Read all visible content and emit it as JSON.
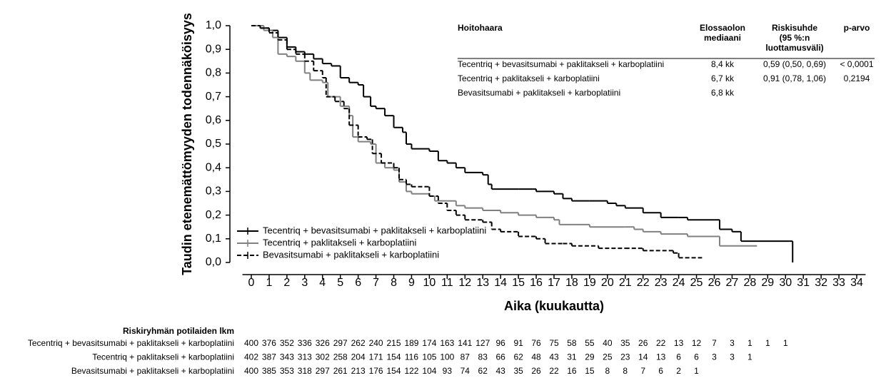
{
  "chart_data": {
    "type": "line",
    "step": true,
    "xlabel": "Aika (kuukautta)",
    "ylabel": "Taudin etenemättömyyden todennäköisyys",
    "xlim": [
      0,
      34
    ],
    "xticks": [
      0,
      1,
      2,
      3,
      4,
      5,
      6,
      7,
      8,
      9,
      10,
      11,
      12,
      13,
      14,
      15,
      16,
      17,
      18,
      19,
      20,
      21,
      22,
      23,
      24,
      25,
      26,
      27,
      28,
      29,
      30,
      31,
      32,
      33,
      34
    ],
    "ylim": [
      0,
      1
    ],
    "yticks": [
      {
        "value": 0,
        "label": "0,0"
      },
      {
        "value": 0.1,
        "label": "0,1"
      },
      {
        "value": 0.2,
        "label": "0,2"
      },
      {
        "value": 0.3,
        "label": "0,3"
      },
      {
        "value": 0.4,
        "label": "0,4"
      },
      {
        "value": 0.5,
        "label": "0,5"
      },
      {
        "value": 0.6,
        "label": "0,6"
      },
      {
        "value": 0.7,
        "label": "0,7"
      },
      {
        "value": 0.8,
        "label": "0,8"
      },
      {
        "value": 0.9,
        "label": "0,9"
      },
      {
        "value": 1,
        "label": "1,0"
      }
    ],
    "legend": "lower left",
    "series": [
      {
        "name": "Tecentriq + bevasitsumabi + paklitakseli + karboplatiini",
        "color": "#000000",
        "dashed": false,
        "x": [
          0,
          0.5,
          1,
          1.5,
          2,
          2.5,
          3,
          3.5,
          4,
          4.5,
          5,
          5.5,
          6,
          6.3,
          6.7,
          7,
          7.5,
          8,
          8.5,
          8.7,
          9,
          10,
          10.5,
          11,
          11.5,
          12,
          13,
          13.3,
          13.5,
          15,
          16,
          17,
          17.5,
          18,
          19,
          20,
          20.5,
          21,
          22,
          23,
          24,
          24.5,
          26,
          26.3,
          27,
          27.5,
          30.4
        ],
        "values": [
          1,
          0.99,
          0.98,
          0.95,
          0.91,
          0.89,
          0.88,
          0.86,
          0.84,
          0.83,
          0.78,
          0.76,
          0.75,
          0.7,
          0.66,
          0.65,
          0.62,
          0.57,
          0.55,
          0.5,
          0.48,
          0.47,
          0.43,
          0.42,
          0.4,
          0.38,
          0.37,
          0.33,
          0.31,
          0.31,
          0.3,
          0.29,
          0.27,
          0.26,
          0.26,
          0.25,
          0.24,
          0.23,
          0.21,
          0.19,
          0.19,
          0.18,
          0.18,
          0.14,
          0.13,
          0.09,
          0
        ]
      },
      {
        "name": "Tecentriq + paklitakseli + karboplatiini",
        "color": "#808080",
        "dashed": false,
        "x": [
          0,
          0.7,
          1.2,
          1.5,
          2,
          2.5,
          3,
          3.3,
          4,
          4.3,
          5,
          5.5,
          5.7,
          6,
          6.7,
          7,
          7.5,
          8,
          8.3,
          8.7,
          9,
          10,
          10.3,
          11,
          11.5,
          12,
          13,
          14,
          15,
          16,
          17,
          17.3,
          18,
          19,
          21,
          21.5,
          22,
          23,
          24.5,
          26,
          26.3,
          28.4
        ],
        "values": [
          1,
          0.98,
          0.95,
          0.88,
          0.87,
          0.85,
          0.8,
          0.77,
          0.76,
          0.7,
          0.66,
          0.62,
          0.53,
          0.51,
          0.5,
          0.42,
          0.4,
          0.39,
          0.34,
          0.3,
          0.29,
          0.28,
          0.26,
          0.26,
          0.24,
          0.23,
          0.22,
          0.21,
          0.2,
          0.19,
          0.18,
          0.16,
          0.16,
          0.15,
          0.15,
          0.14,
          0.13,
          0.12,
          0.11,
          0.11,
          0.07,
          0.07
        ]
      },
      {
        "name": "Bevasitsumabi + paklitakseli + karboplatiini",
        "color": "#000000",
        "dashed": true,
        "x": [
          0,
          0.5,
          1,
          1.5,
          2,
          2.5,
          3,
          3.5,
          4,
          4.2,
          4.7,
          5.2,
          5.5,
          6,
          6.5,
          6.8,
          7.3,
          8,
          8.3,
          8.7,
          9,
          10,
          10.5,
          11,
          11.5,
          12,
          13,
          13.5,
          14,
          15,
          16,
          16.5,
          17.5,
          18,
          19.5,
          21,
          22,
          23.7,
          24,
          25.3
        ],
        "values": [
          1,
          0.99,
          0.97,
          0.94,
          0.9,
          0.88,
          0.85,
          0.81,
          0.78,
          0.7,
          0.68,
          0.65,
          0.58,
          0.53,
          0.52,
          0.46,
          0.42,
          0.4,
          0.35,
          0.33,
          0.32,
          0.28,
          0.25,
          0.22,
          0.2,
          0.18,
          0.17,
          0.14,
          0.13,
          0.11,
          0.1,
          0.08,
          0.08,
          0.07,
          0.06,
          0.06,
          0.05,
          0.04,
          0.02,
          0.02
        ]
      }
    ]
  },
  "summary_table": {
    "headers": [
      [
        "Hoitohaara"
      ],
      [
        "Elossaolon",
        "mediaani"
      ],
      [
        "Riskisuhde",
        "(95 %:n",
        "luottamusväli)"
      ],
      [
        "p-arvo"
      ]
    ],
    "rows": [
      {
        "arm": "Tecentriq + bevasitsumabi + paklitakseli + karboplatiini",
        "median": "8,4 kk",
        "hr": "0,59 (0,50, 0,69)",
        "p": "< 0,0001"
      },
      {
        "arm": "Tecentriq + paklitakseli + karboplatiini",
        "median": "6,7 kk",
        "hr": "0,91 (0,78, 1,06)",
        "p": "0,2194"
      },
      {
        "arm": "Bevasitsumabi + paklitakseli + karboplatiini",
        "median": "6,8 kk"
      }
    ]
  },
  "risk_table": {
    "title": "Riskiryhmän potilaiden lkm",
    "rows": [
      {
        "label": "Tecentriq + bevasitsumabi + paklitakseli + karboplatiini",
        "counts": [
          400,
          376,
          352,
          336,
          326,
          297,
          262,
          240,
          215,
          189,
          174,
          163,
          141,
          127,
          96,
          91,
          76,
          75,
          58,
          55,
          40,
          35,
          26,
          22,
          13,
          12,
          7,
          3,
          1,
          1,
          1
        ]
      },
      {
        "label": "Tecentriq + paklitakseli + karboplatiini",
        "counts": [
          402,
          387,
          343,
          313,
          302,
          258,
          204,
          171,
          154,
          116,
          105,
          100,
          87,
          83,
          66,
          62,
          48,
          43,
          31,
          29,
          25,
          23,
          14,
          13,
          6,
          6,
          3,
          3,
          1
        ]
      },
      {
        "label": "Bevasitsumabi + paklitakseli + karboplatiini",
        "counts": [
          400,
          385,
          353,
          318,
          297,
          261,
          213,
          176,
          154,
          122,
          104,
          93,
          74,
          62,
          43,
          35,
          26,
          22,
          16,
          15,
          8,
          8,
          7,
          6,
          2,
          1
        ]
      }
    ]
  }
}
